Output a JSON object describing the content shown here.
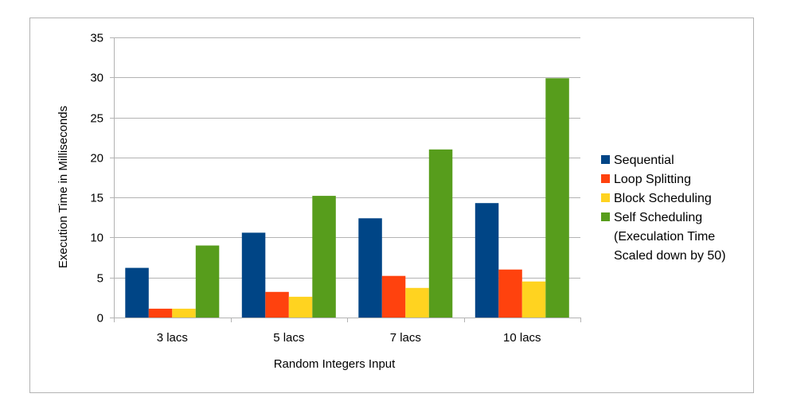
{
  "chart_data": {
    "type": "bar",
    "title": "",
    "xlabel": "Random Integers Input",
    "ylabel": "Execution Time in Milliseconds",
    "ylim": [
      0,
      35
    ],
    "yticks": [
      0,
      5,
      10,
      15,
      20,
      25,
      30,
      35
    ],
    "grid": true,
    "legend_position": "right",
    "categories": [
      "3 lacs",
      "5 lacs",
      "7 lacs",
      "10 lacs"
    ],
    "series": [
      {
        "name": "Sequential",
        "color": "#004586",
        "values": [
          6.2,
          10.6,
          12.4,
          14.3
        ]
      },
      {
        "name": "Loop Splitting",
        "color": "#ff420e",
        "values": [
          1.1,
          3.2,
          5.2,
          6.0
        ]
      },
      {
        "name": "Block Scheduling",
        "color": "#ffd320",
        "values": [
          1.1,
          2.6,
          3.7,
          4.5
        ]
      },
      {
        "name": "Self Scheduling",
        "name_lines": [
          "Self Scheduling",
          "(Execulation Time",
          "Scaled down by 50)"
        ],
        "color": "#579d1c",
        "values": [
          9.0,
          15.2,
          21.0,
          29.9
        ]
      }
    ]
  }
}
